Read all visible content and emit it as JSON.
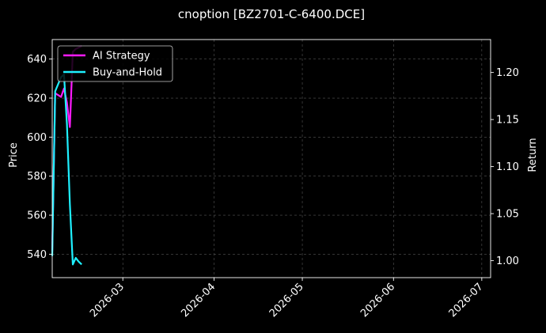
{
  "chart_data": {
    "type": "line",
    "title": "cnoption [BZ2701-C-6400.DCE]",
    "xlabel": "",
    "ylabel": "Price",
    "y2label": "Return",
    "x_axis": "date",
    "xlim": [
      "2026-02-05",
      "2026-07-04"
    ],
    "ylim": [
      528,
      650
    ],
    "y2lim": [
      0.982,
      1.235
    ],
    "x_ticks": [
      "2026-03-01",
      "2026-04-01",
      "2026-05-01",
      "2026-06-01",
      "2026-07-01"
    ],
    "x_tick_labels": [
      "2026-03",
      "2026-04",
      "2026-05",
      "2026-06",
      "2026-07"
    ],
    "y_ticks": [
      540,
      560,
      580,
      600,
      620,
      640
    ],
    "y2_ticks": [
      1.0,
      1.05,
      1.1,
      1.15,
      1.2
    ],
    "y2_tick_labels": [
      "1.00",
      "1.05",
      "1.10",
      "1.15",
      "1.20"
    ],
    "grid": true,
    "legend_position": "top-left",
    "background": "#000000",
    "series": [
      {
        "name": "AI Strategy",
        "axis": "right",
        "color": "#ff1aff",
        "x": [
          "2026-02-05",
          "2026-02-06",
          "2026-02-08",
          "2026-02-09",
          "2026-02-10",
          "2026-02-11",
          "2026-02-12",
          "2026-02-13",
          "2026-02-15"
        ],
        "values": [
          1.01,
          1.178,
          1.174,
          1.183,
          1.168,
          1.142,
          1.222,
          1.225,
          1.228
        ]
      },
      {
        "name": "Buy-and-Hold",
        "axis": "right",
        "color": "#1ef0ff",
        "x": [
          "2026-02-05",
          "2026-02-06",
          "2026-02-08",
          "2026-02-09",
          "2026-02-10",
          "2026-02-11",
          "2026-02-12",
          "2026-02-13",
          "2026-02-14",
          "2026-02-15"
        ],
        "values": [
          1.005,
          1.18,
          1.195,
          1.198,
          1.145,
          1.06,
          0.996,
          1.003,
          0.999,
          0.996
        ]
      }
    ]
  }
}
